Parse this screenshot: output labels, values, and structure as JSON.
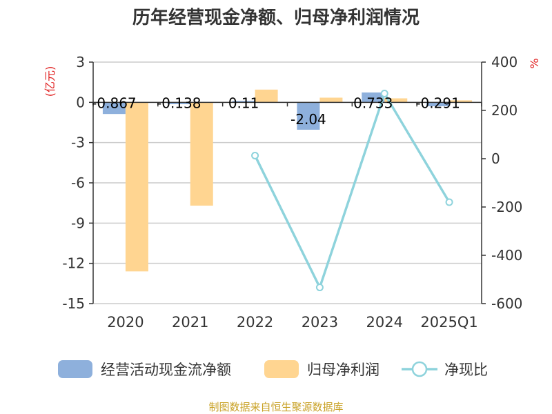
{
  "chart_data": {
    "type": "bar",
    "title": "历年经营现金净额、归母净利润情况",
    "categories": [
      "2020",
      "2021",
      "2022",
      "2023",
      "2024",
      "2025Q1"
    ],
    "left_axis": {
      "unit_label": "(亿元)",
      "ylim": [
        -15,
        3
      ],
      "ticks": [
        "3",
        "0",
        "-3",
        "-6",
        "-9",
        "-12",
        "-15"
      ]
    },
    "right_axis": {
      "unit_label": "%",
      "ylim": [
        -600,
        400
      ],
      "ticks": [
        "400",
        "200",
        "0",
        "-200",
        "-400",
        "-600"
      ]
    },
    "grid": true,
    "series": [
      {
        "name": "经营活动现金流净额",
        "type": "bar",
        "axis": "left",
        "color": "#8eb0dc",
        "values": [
          -0.867,
          -0.138,
          0.11,
          -2.04,
          0.733,
          -0.291
        ],
        "labels": [
          "-0.867",
          "-0.138",
          "0.11",
          "-2.04",
          "0.733",
          "-0.291"
        ]
      },
      {
        "name": "归母净利润",
        "type": "bar",
        "axis": "left",
        "color": "#ffd591",
        "values": [
          -12.6,
          -7.7,
          0.95,
          0.35,
          0.3,
          0.15
        ]
      },
      {
        "name": "净现比",
        "type": "line",
        "axis": "right",
        "color": "#8ed3dc",
        "values": [
          null,
          null,
          13,
          -533,
          270,
          -180
        ]
      }
    ],
    "legend_position": "bottom",
    "source": "制图数据来自恒生聚源数据库"
  }
}
